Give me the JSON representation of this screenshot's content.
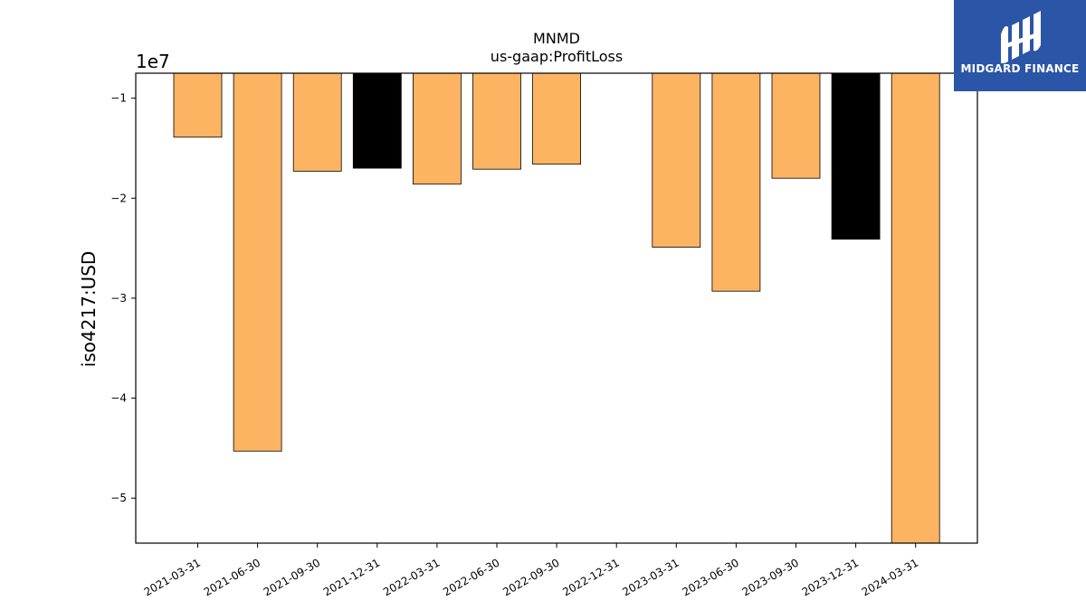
{
  "chart_data": {
    "type": "bar",
    "title": "MNMD",
    "subtitle": "us-gaap:ProfitLoss",
    "ylabel": "iso4217:USD",
    "xlabel": "",
    "y_scale_label": "1e7",
    "ylim": [
      -54500000,
      -7500000
    ],
    "y_ticks": [
      -10000000,
      -20000000,
      -30000000,
      -40000000,
      -50000000
    ],
    "y_tick_labels": [
      "−1",
      "−2",
      "−3",
      "−4",
      "−5"
    ],
    "grid": false,
    "categories": [
      "2021-03-31",
      "2021-06-30",
      "2021-09-30",
      "2021-12-31",
      "2022-03-31",
      "2022-06-30",
      "2022-09-30",
      "2022-12-31",
      "2023-03-31",
      "2023-06-30",
      "2023-09-30",
      "2023-12-31",
      "2024-03-31"
    ],
    "values": [
      -13900000,
      -45300000,
      -17300000,
      -17000000,
      -18600000,
      -17100000,
      -16600000,
      null,
      -24900000,
      -29300000,
      -18000000,
      -24100000,
      -54500000
    ],
    "bar_colors": [
      "#fdb462",
      "#fdb462",
      "#fdb462",
      "#000000",
      "#fdb462",
      "#fdb462",
      "#fdb462",
      null,
      "#fdb462",
      "#fdb462",
      "#fdb462",
      "#000000",
      "#fdb462"
    ]
  },
  "logo": {
    "text": "MIDGARD FINANCE",
    "background": "#2b56a8"
  }
}
